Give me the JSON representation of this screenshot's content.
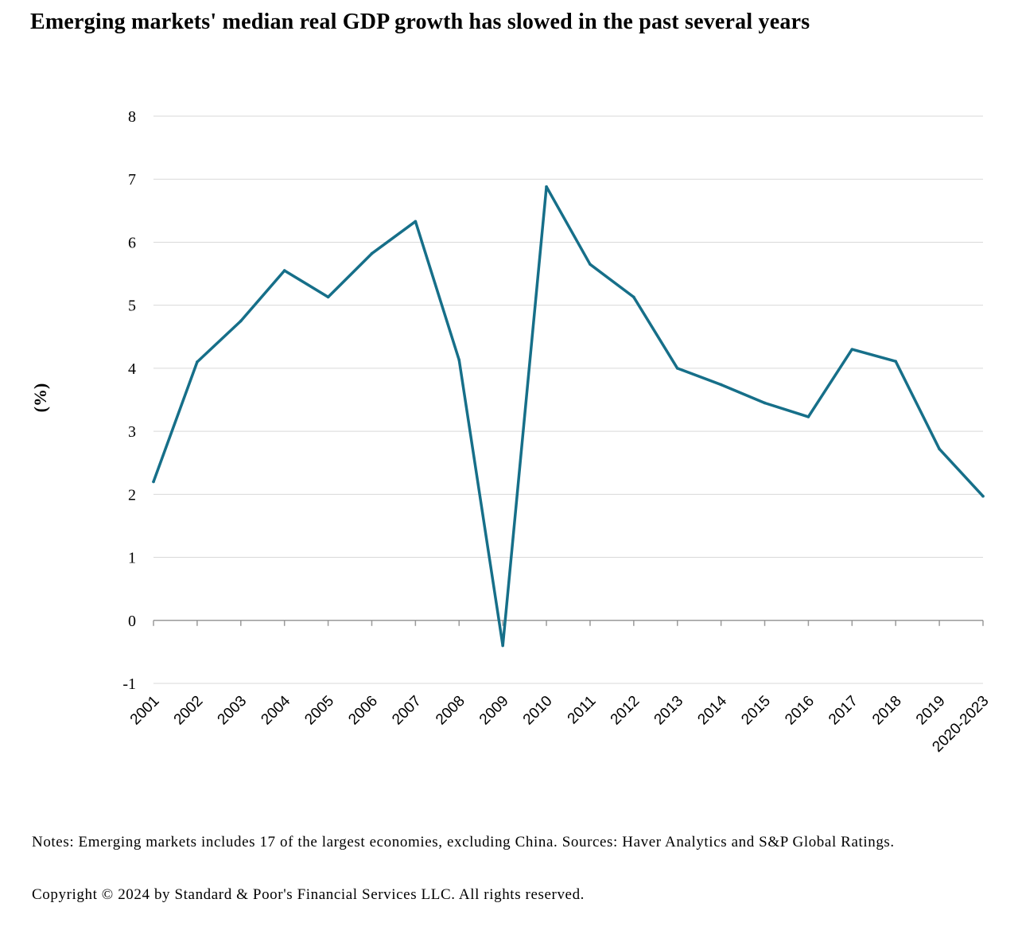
{
  "title": "Emerging markets' median real GDP growth has slowed in the past several years",
  "notes": "Notes: Emerging markets includes 17 of the largest economies, excluding China. Sources: Haver Analytics and S&P Global Ratings.",
  "copyright": "Copyright © 2024 by Standard & Poor's Financial Services LLC. All rights reserved.",
  "colors": {
    "line": "#166f89",
    "grid": "#d9d9d9",
    "axis": "#9a9a9a"
  },
  "chart_data": {
    "type": "line",
    "title": "Emerging markets' median real GDP growth has slowed in the past several years",
    "xlabel": "",
    "ylabel": "(%)",
    "ylim": [
      -1,
      8
    ],
    "yticks": [
      -1,
      0,
      1,
      2,
      3,
      4,
      5,
      6,
      7,
      8
    ],
    "grid": true,
    "legend": "none",
    "categories": [
      "2001",
      "2002",
      "2003",
      "2004",
      "2005",
      "2006",
      "2007",
      "2008",
      "2009",
      "2010",
      "2011",
      "2012",
      "2013",
      "2014",
      "2015",
      "2016",
      "2017",
      "2018",
      "2019",
      "2020-2023"
    ],
    "series": [
      {
        "values": [
          2.2,
          4.1,
          4.75,
          5.55,
          5.13,
          5.82,
          6.33,
          4.13,
          -0.4,
          6.88,
          5.65,
          5.13,
          4.0,
          3.74,
          3.45,
          3.23,
          4.3,
          4.11,
          2.72,
          1.97
        ]
      }
    ]
  }
}
